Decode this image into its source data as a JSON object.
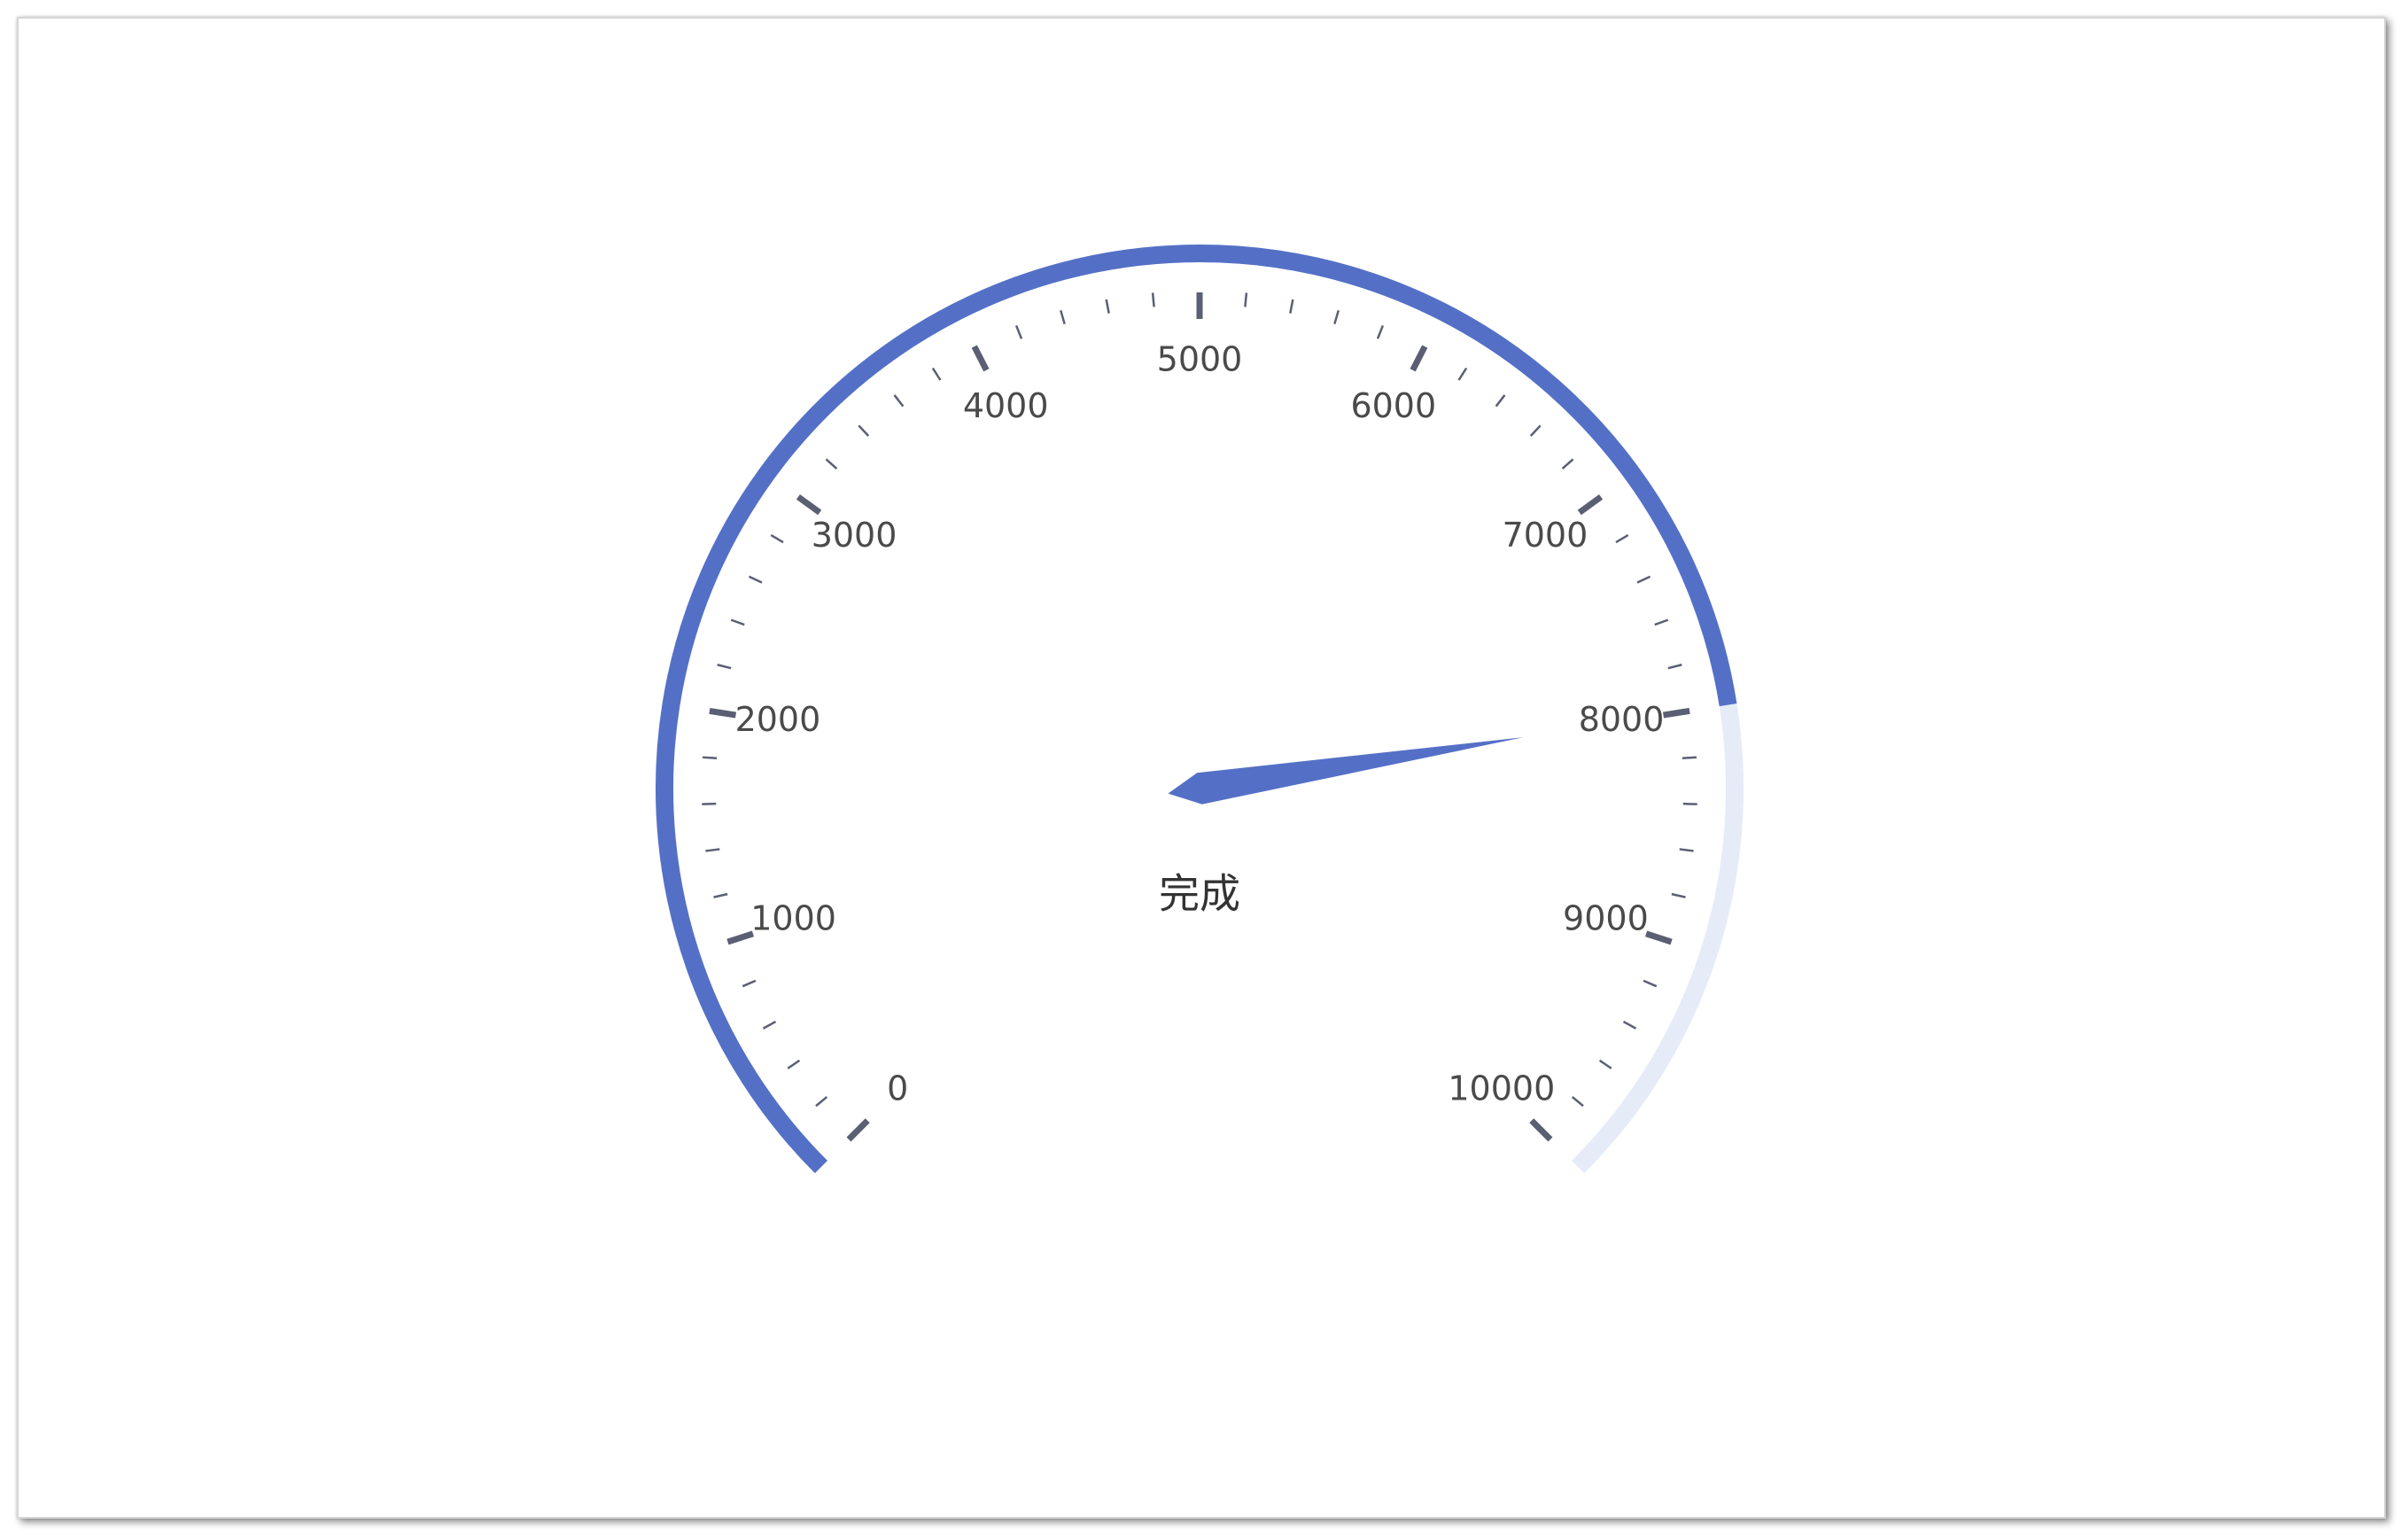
{
  "chart_data": {
    "type": "gauge",
    "min": 0,
    "max": 10000,
    "value": 8000,
    "detail_label": "完成",
    "tick_labels": [
      "0",
      "1000",
      "2000",
      "3000",
      "4000",
      "5000",
      "6000",
      "7000",
      "8000",
      "9000",
      "10000"
    ],
    "colors": {
      "progress": "#5470c6",
      "track": "#e6ebf8",
      "ticks": "#5a5f73",
      "pointer": "#5470c6",
      "labels": "#4a4a4a"
    }
  }
}
